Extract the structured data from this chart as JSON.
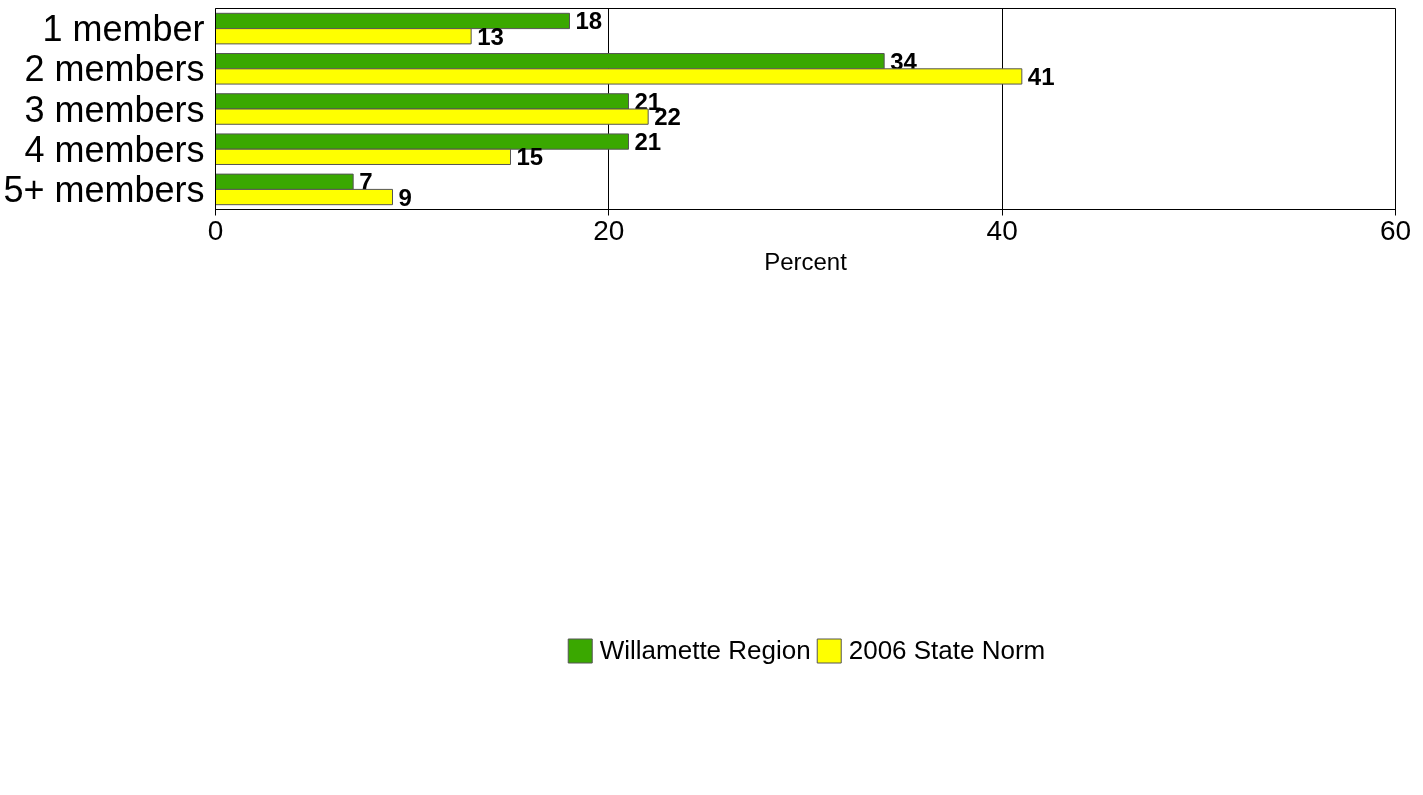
{
  "chart_data": {
    "type": "bar",
    "orientation": "horizontal",
    "categories": [
      "1 member",
      "2 members",
      "3 members",
      "4 members",
      "5+ members"
    ],
    "series": [
      {
        "name": "Willamette Region",
        "color": "#3aa800",
        "values": [
          18,
          34,
          21,
          21,
          7
        ]
      },
      {
        "name": "2006 State Norm",
        "color": "#ffff00",
        "values": [
          13,
          41,
          22,
          15,
          9
        ]
      }
    ],
    "xlabel": "Percent",
    "xlim": [
      0,
      60
    ],
    "xticks": [
      0,
      20,
      40,
      60
    ],
    "grid": "x",
    "legend": "bottom",
    "data_labels": true
  }
}
